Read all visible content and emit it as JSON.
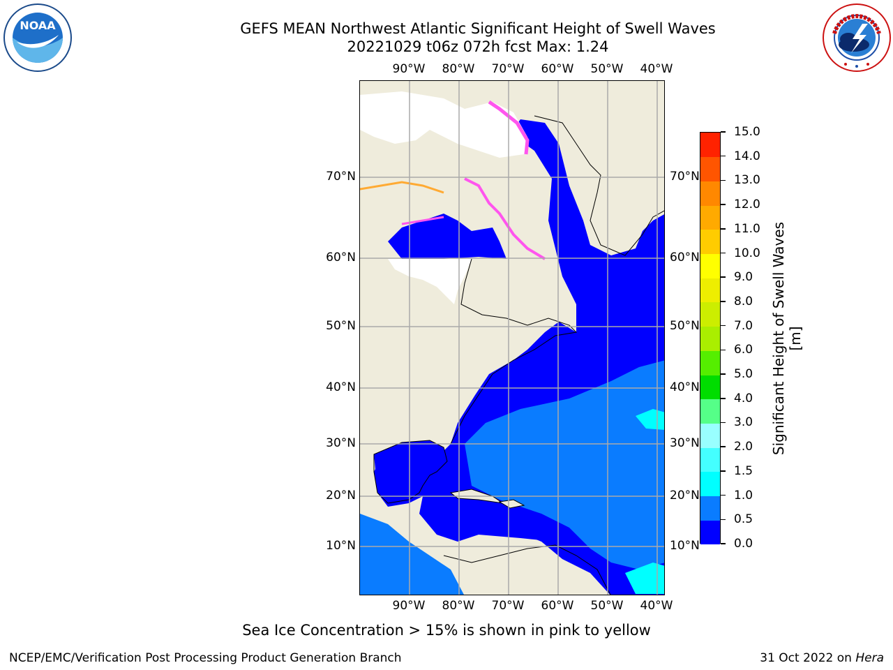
{
  "header": {
    "title_line1": "GEFS MEAN Northwest Atlantic Significant Height of Swell Waves",
    "title_line2": "20221029 t06z 072h fcst   Max: 1.24"
  },
  "logos": {
    "noaa_text": "NOAA",
    "nws_text": "NATIONAL WEATHER SERVICE",
    "noaa_icon": "noaa-logo",
    "nws_icon": "nws-logo"
  },
  "map": {
    "lon_labels": [
      "90°W",
      "80°W",
      "70°W",
      "60°W",
      "50°W",
      "40°W"
    ],
    "lat_labels": [
      "70°N",
      "60°N",
      "50°N",
      "40°N",
      "30°N",
      "20°N",
      "10°N"
    ],
    "colors": {
      "land": "#efecdc",
      "ocean_low": "#0000ff",
      "ocean_mid": "#0a7cff",
      "ocean_cyan": "#00ffff",
      "ice_pink": "#ff55ee",
      "ice_orange": "#ffaa33",
      "grid": "#aaaaaa",
      "coast": "#000000"
    }
  },
  "colorbar": {
    "title": "Significant Height of Swell Waves [m]",
    "levels": [
      "0.0",
      "0.5",
      "1.0",
      "1.5",
      "2.0",
      "3.0",
      "4.0",
      "5.0",
      "6.0",
      "7.0",
      "8.0",
      "9.0",
      "10.0",
      "11.0",
      "12.0",
      "13.0",
      "14.0",
      "15.0"
    ],
    "colors": [
      "#0000ff",
      "#0a7cff",
      "#00ffff",
      "#44ffff",
      "#99ffff",
      "#55ff88",
      "#00dd00",
      "#55ee00",
      "#aaee00",
      "#ccee00",
      "#eeee00",
      "#ffff00",
      "#ffcc00",
      "#ffaa00",
      "#ff8800",
      "#ff5500",
      "#ff2200"
    ]
  },
  "note": "Sea Ice Concentration > 15% is shown in pink to yellow",
  "footer": {
    "left": "NCEP/EMC/Verification Post Processing Product Generation Branch",
    "right_date": "31 Oct 2022 on ",
    "right_host": "Hera"
  }
}
